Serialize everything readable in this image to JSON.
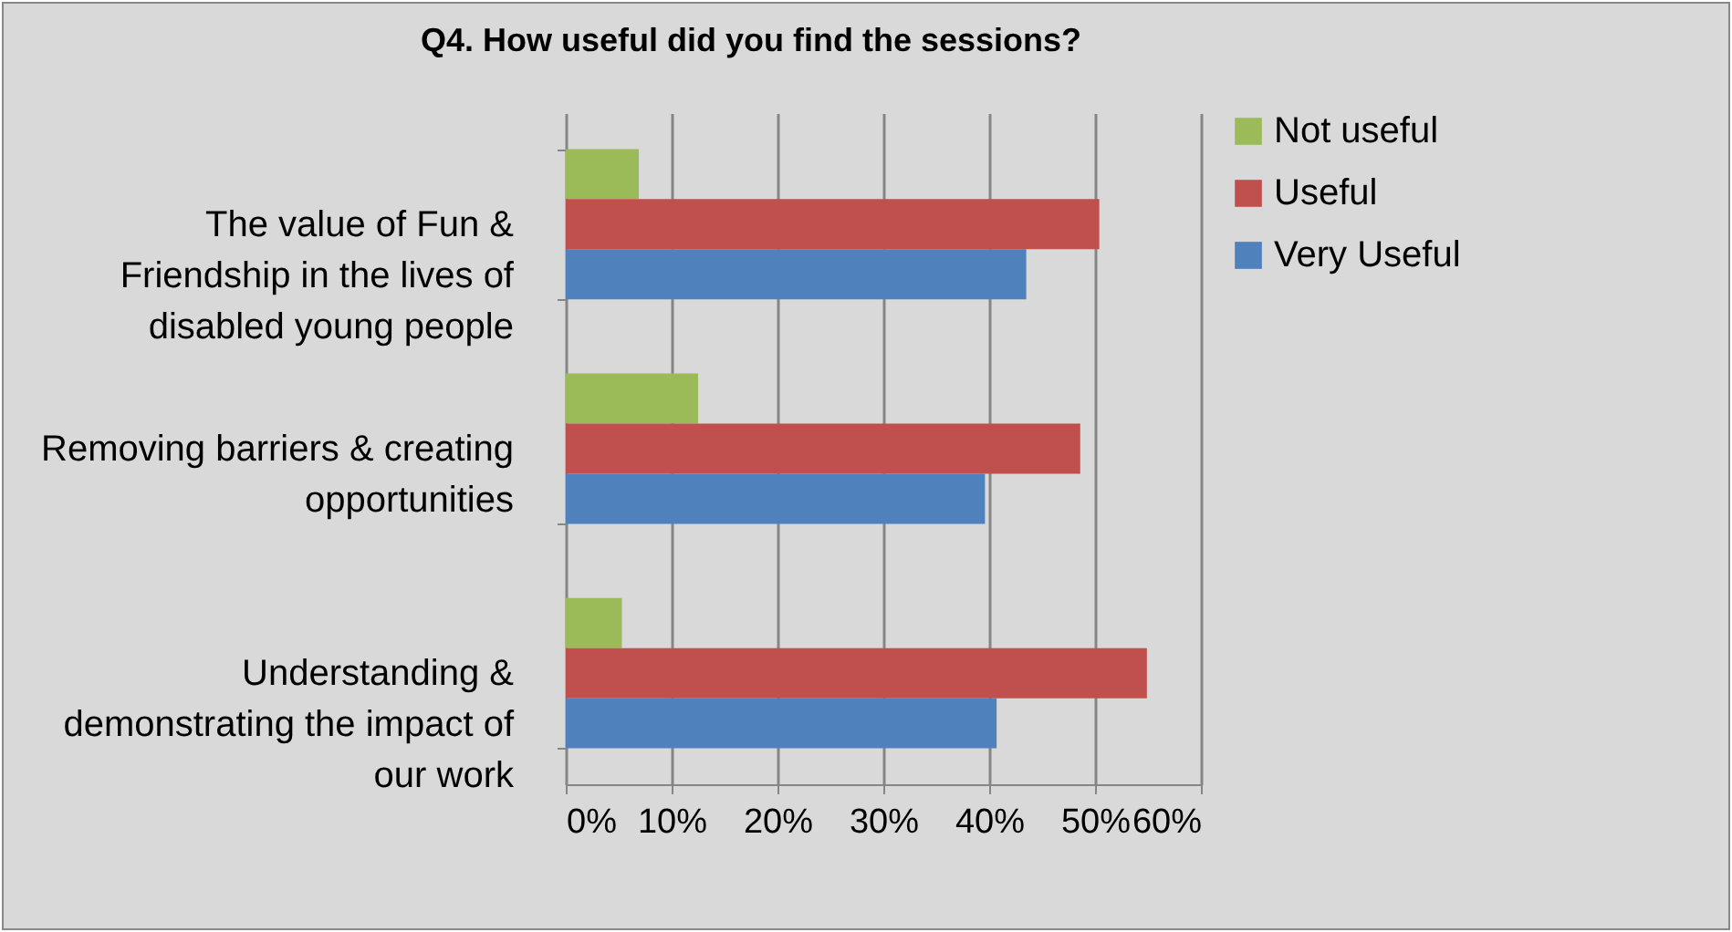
{
  "chart_data": {
    "type": "bar",
    "orientation": "horizontal",
    "title": "Q4. How useful did you find the sessions?",
    "categories": [
      "The value of Fun & Friendship in the lives of disabled young people",
      "Removing barriers & creating opportunities",
      "Understanding & demonstrating the impact of our work"
    ],
    "series": [
      {
        "name": "Not useful",
        "color": "#9bbb59",
        "values": [
          6.9,
          12.5,
          5.3
        ]
      },
      {
        "name": "Useful",
        "color": "#c0504d",
        "values": [
          50.4,
          48.6,
          54.9
        ]
      },
      {
        "name": "Very Useful",
        "color": "#4f81bd",
        "values": [
          43.5,
          39.6,
          40.7
        ]
      }
    ],
    "xlim": [
      0,
      60
    ],
    "xticks": [
      {
        "value": 0,
        "label": "0%"
      },
      {
        "value": 10,
        "label": "10%"
      },
      {
        "value": 20,
        "label": "20%"
      },
      {
        "value": 30,
        "label": "30%"
      },
      {
        "value": 40,
        "label": "40%"
      },
      {
        "value": 50,
        "label": "50%"
      },
      {
        "value": 60,
        "label": "60%"
      }
    ],
    "grid": "x",
    "legend": "right"
  }
}
